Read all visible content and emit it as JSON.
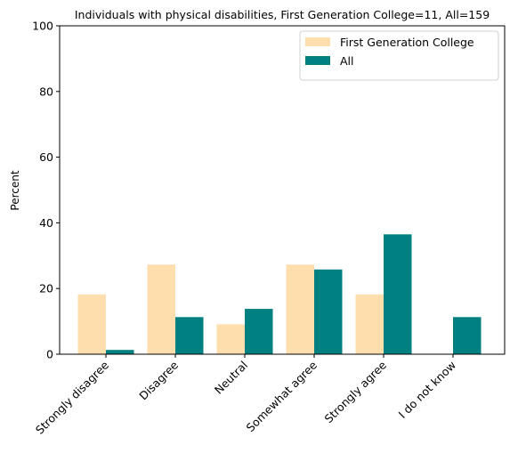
{
  "chart_data": {
    "type": "bar",
    "title": "Individuals with physical disabilities, First Generation College=11, All=159",
    "xlabel": "",
    "ylabel": "Percent",
    "ylim": [
      0,
      100
    ],
    "yticks": [
      0,
      20,
      40,
      60,
      80,
      100
    ],
    "grid": false,
    "legend_position": "top-right",
    "categories": [
      "Strongly disagree",
      "Disagree",
      "Neutral",
      "Somewhat agree",
      "Strongly agree",
      "I do not know"
    ],
    "series": [
      {
        "name": "First Generation College",
        "color": "#ffdead",
        "values": [
          18.2,
          27.3,
          9.1,
          27.3,
          18.2,
          0
        ]
      },
      {
        "name": "All",
        "color": "#008080",
        "values": [
          1.3,
          11.3,
          13.8,
          25.8,
          36.5,
          11.3
        ]
      }
    ]
  }
}
